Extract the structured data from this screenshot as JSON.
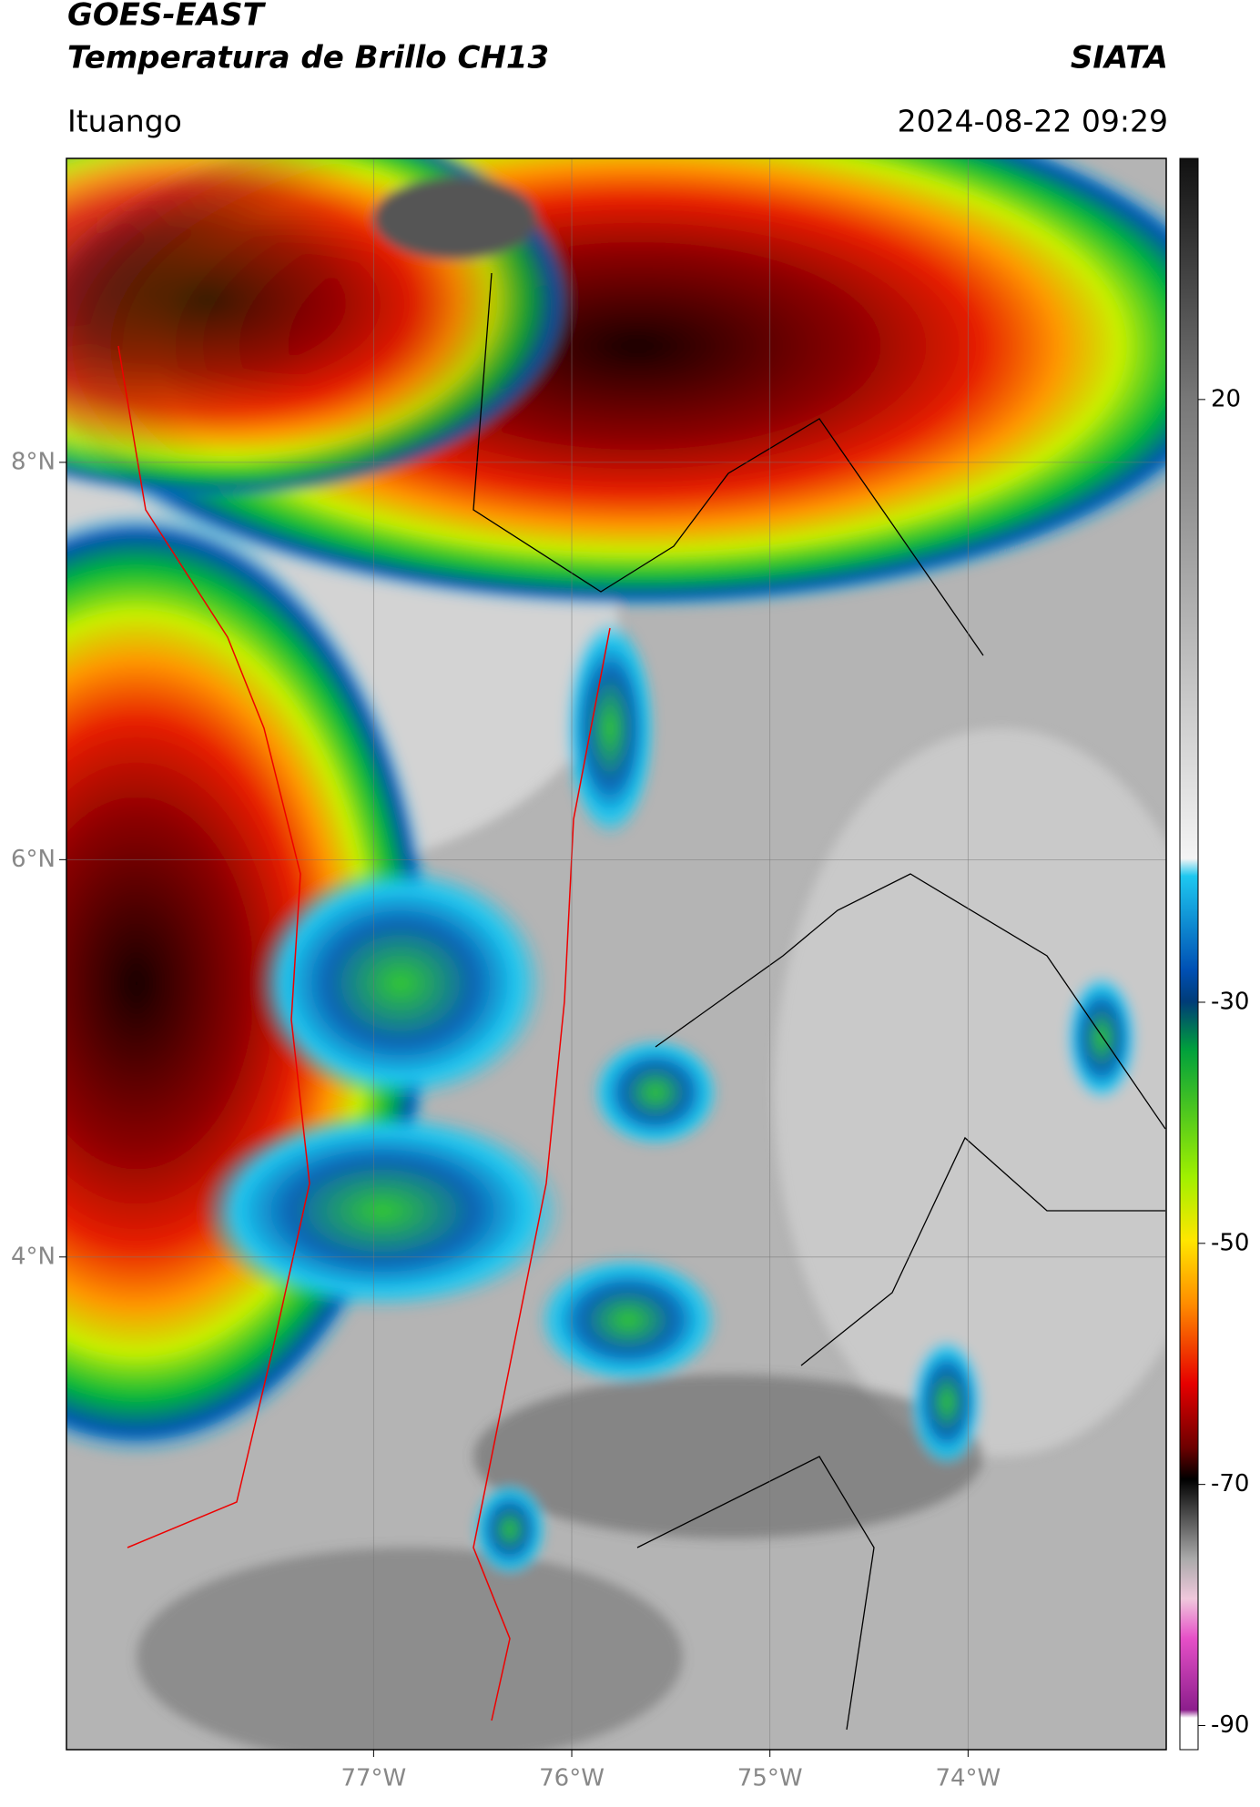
{
  "header": {
    "title_lines": [
      "GOES-EAST",
      "Temperatura de Brillo CH13"
    ],
    "org": "SIATA",
    "location": "Ituango",
    "datetime": "2024-08-22 09:29"
  },
  "map": {
    "xlim": [
      -78.55,
      -73.0
    ],
    "ylim": [
      1.52,
      9.53
    ],
    "xticks": [
      {
        "value": -77,
        "label": "77°W"
      },
      {
        "value": -76,
        "label": "76°W"
      },
      {
        "value": -75,
        "label": "75°W"
      },
      {
        "value": -74,
        "label": "74°W"
      }
    ],
    "yticks": [
      {
        "value": 8,
        "label": "8°N"
      },
      {
        "value": 6,
        "label": "6°N"
      },
      {
        "value": 4,
        "label": "4°N"
      }
    ],
    "grid": true
  },
  "colorbar": {
    "lim": [
      -92,
      40
    ],
    "ticks": [
      20,
      -30,
      -50,
      -70,
      -90
    ]
  }
}
